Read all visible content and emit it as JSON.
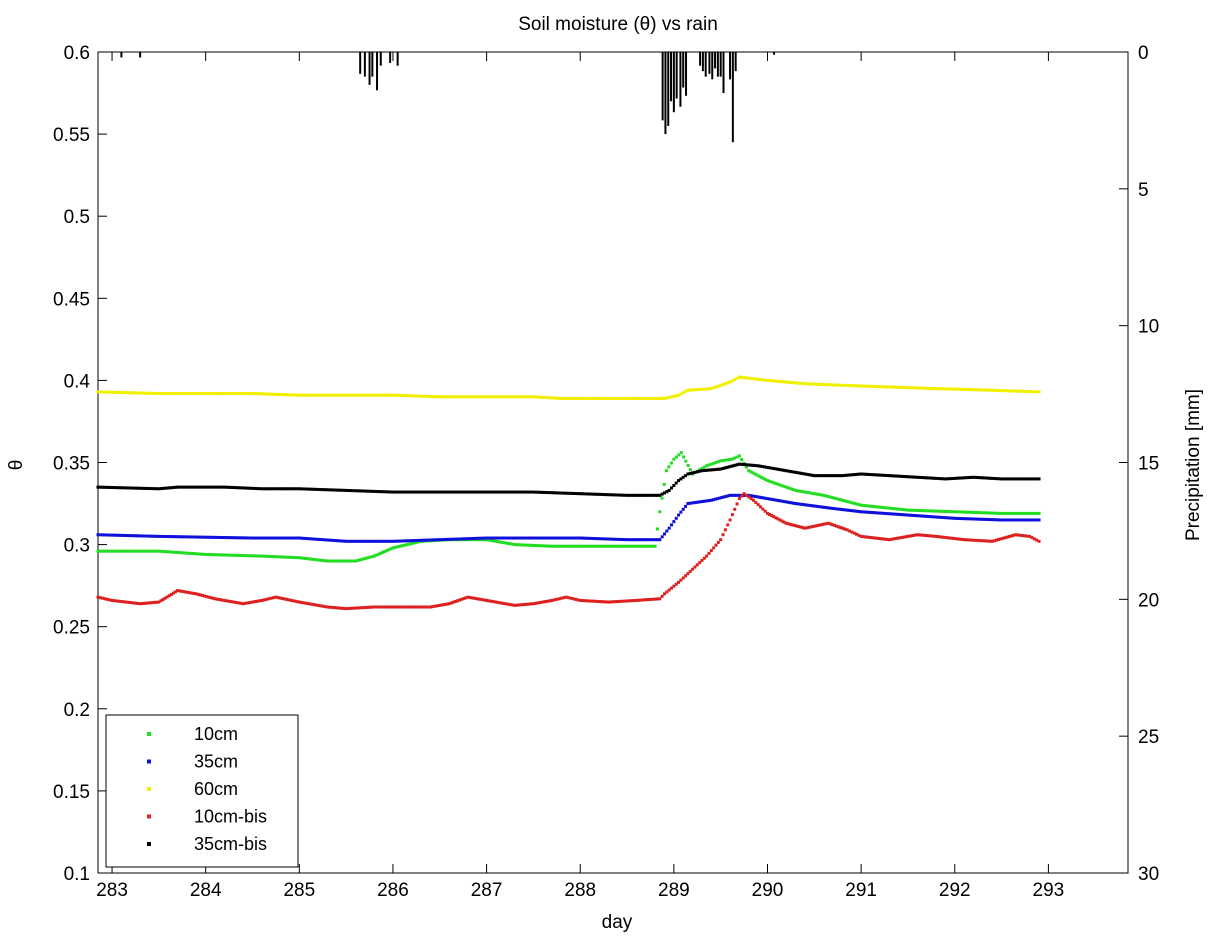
{
  "chart_data": {
    "type": "scatter",
    "title": "Soil moisture (θ) vs rain",
    "xlabel": "day",
    "ylabel": "θ",
    "y2label": "Precipitation [mm]",
    "xlim": [
      282.85,
      293.85
    ],
    "ylim": [
      0.1,
      0.6
    ],
    "y2lim": [
      0,
      30
    ],
    "y2_reversed": true,
    "xticks": [
      283,
      284,
      285,
      286,
      287,
      288,
      289,
      290,
      291,
      292,
      293
    ],
    "yticks": [
      0.1,
      0.15,
      0.2,
      0.25,
      0.3,
      0.35,
      0.4,
      0.45,
      0.5,
      0.55,
      0.6
    ],
    "y2ticks": [
      0,
      5,
      10,
      15,
      20,
      25,
      30
    ],
    "grid": false,
    "legend_position": "bottom-left",
    "series": [
      {
        "name": "10cm",
        "color": "#22dd22",
        "points": [
          [
            282.85,
            0.296
          ],
          [
            283.5,
            0.296
          ],
          [
            284.0,
            0.294
          ],
          [
            284.6,
            0.293
          ],
          [
            285.0,
            0.292
          ],
          [
            285.3,
            0.29
          ],
          [
            285.6,
            0.29
          ],
          [
            285.8,
            0.293
          ],
          [
            286.0,
            0.298
          ],
          [
            286.3,
            0.302
          ],
          [
            286.6,
            0.303
          ],
          [
            287.0,
            0.303
          ],
          [
            287.3,
            0.3
          ],
          [
            287.7,
            0.299
          ],
          [
            288.0,
            0.299
          ],
          [
            288.4,
            0.299
          ],
          [
            288.8,
            0.299
          ],
          [
            288.85,
            0.32
          ],
          [
            288.92,
            0.345
          ],
          [
            289.0,
            0.352
          ],
          [
            289.08,
            0.356
          ],
          [
            289.2,
            0.343
          ],
          [
            289.35,
            0.348
          ],
          [
            289.5,
            0.351
          ],
          [
            289.62,
            0.352
          ],
          [
            289.7,
            0.354
          ],
          [
            289.8,
            0.345
          ],
          [
            290.0,
            0.339
          ],
          [
            290.3,
            0.333
          ],
          [
            290.6,
            0.33
          ],
          [
            291.0,
            0.324
          ],
          [
            291.5,
            0.321
          ],
          [
            292.0,
            0.32
          ],
          [
            292.5,
            0.319
          ],
          [
            292.9,
            0.319
          ]
        ]
      },
      {
        "name": "35cm",
        "color": "#1010dd",
        "points": [
          [
            282.85,
            0.306
          ],
          [
            283.5,
            0.305
          ],
          [
            284.5,
            0.304
          ],
          [
            285.0,
            0.304
          ],
          [
            285.5,
            0.302
          ],
          [
            286.0,
            0.302
          ],
          [
            286.5,
            0.303
          ],
          [
            287.0,
            0.304
          ],
          [
            287.5,
            0.304
          ],
          [
            288.0,
            0.304
          ],
          [
            288.5,
            0.303
          ],
          [
            288.85,
            0.303
          ],
          [
            288.95,
            0.31
          ],
          [
            289.05,
            0.318
          ],
          [
            289.15,
            0.325
          ],
          [
            289.4,
            0.327
          ],
          [
            289.6,
            0.33
          ],
          [
            289.8,
            0.33
          ],
          [
            290.0,
            0.328
          ],
          [
            290.3,
            0.325
          ],
          [
            290.7,
            0.322
          ],
          [
            291.0,
            0.32
          ],
          [
            291.5,
            0.318
          ],
          [
            292.0,
            0.316
          ],
          [
            292.5,
            0.315
          ],
          [
            292.9,
            0.315
          ]
        ]
      },
      {
        "name": "60cm",
        "color": "#f0f000",
        "points": [
          [
            282.85,
            0.393
          ],
          [
            283.5,
            0.392
          ],
          [
            284.5,
            0.392
          ],
          [
            285.0,
            0.391
          ],
          [
            285.5,
            0.391
          ],
          [
            286.0,
            0.391
          ],
          [
            286.5,
            0.39
          ],
          [
            287.0,
            0.39
          ],
          [
            287.5,
            0.39
          ],
          [
            287.8,
            0.389
          ],
          [
            288.0,
            0.389
          ],
          [
            288.5,
            0.389
          ],
          [
            288.9,
            0.389
          ],
          [
            289.05,
            0.391
          ],
          [
            289.15,
            0.394
          ],
          [
            289.4,
            0.395
          ],
          [
            289.6,
            0.399
          ],
          [
            289.7,
            0.402
          ],
          [
            290.0,
            0.4
          ],
          [
            290.4,
            0.398
          ],
          [
            290.8,
            0.397
          ],
          [
            291.3,
            0.396
          ],
          [
            291.8,
            0.395
          ],
          [
            292.4,
            0.394
          ],
          [
            292.9,
            0.393
          ]
        ]
      },
      {
        "name": "10cm-bis",
        "color": "#dd2020",
        "points": [
          [
            282.85,
            0.268
          ],
          [
            283.0,
            0.266
          ],
          [
            283.3,
            0.264
          ],
          [
            283.5,
            0.265
          ],
          [
            283.7,
            0.272
          ],
          [
            283.9,
            0.27
          ],
          [
            284.1,
            0.267
          ],
          [
            284.4,
            0.264
          ],
          [
            284.6,
            0.266
          ],
          [
            284.75,
            0.268
          ],
          [
            285.0,
            0.265
          ],
          [
            285.3,
            0.262
          ],
          [
            285.5,
            0.261
          ],
          [
            285.8,
            0.262
          ],
          [
            286.0,
            0.262
          ],
          [
            286.4,
            0.262
          ],
          [
            286.6,
            0.264
          ],
          [
            286.8,
            0.268
          ],
          [
            287.0,
            0.266
          ],
          [
            287.3,
            0.263
          ],
          [
            287.5,
            0.264
          ],
          [
            287.7,
            0.266
          ],
          [
            287.85,
            0.268
          ],
          [
            288.0,
            0.266
          ],
          [
            288.3,
            0.265
          ],
          [
            288.6,
            0.266
          ],
          [
            288.85,
            0.267
          ],
          [
            288.9,
            0.27
          ],
          [
            289.05,
            0.277
          ],
          [
            289.2,
            0.285
          ],
          [
            289.35,
            0.293
          ],
          [
            289.5,
            0.303
          ],
          [
            289.6,
            0.315
          ],
          [
            289.7,
            0.328
          ],
          [
            289.75,
            0.331
          ],
          [
            289.85,
            0.327
          ],
          [
            290.0,
            0.319
          ],
          [
            290.2,
            0.313
          ],
          [
            290.4,
            0.31
          ],
          [
            290.65,
            0.313
          ],
          [
            290.85,
            0.309
          ],
          [
            291.0,
            0.305
          ],
          [
            291.3,
            0.303
          ],
          [
            291.6,
            0.306
          ],
          [
            291.8,
            0.305
          ],
          [
            292.1,
            0.303
          ],
          [
            292.4,
            0.302
          ],
          [
            292.65,
            0.306
          ],
          [
            292.8,
            0.305
          ],
          [
            292.9,
            0.302
          ]
        ]
      },
      {
        "name": "35cm-bis",
        "color": "#000000",
        "points": [
          [
            282.85,
            0.335
          ],
          [
            283.5,
            0.334
          ],
          [
            283.7,
            0.335
          ],
          [
            284.2,
            0.335
          ],
          [
            284.6,
            0.334
          ],
          [
            285.0,
            0.334
          ],
          [
            285.5,
            0.333
          ],
          [
            286.0,
            0.332
          ],
          [
            286.5,
            0.332
          ],
          [
            287.0,
            0.332
          ],
          [
            287.5,
            0.332
          ],
          [
            288.0,
            0.331
          ],
          [
            288.5,
            0.33
          ],
          [
            288.85,
            0.33
          ],
          [
            288.95,
            0.333
          ],
          [
            289.05,
            0.339
          ],
          [
            289.15,
            0.343
          ],
          [
            289.3,
            0.345
          ],
          [
            289.5,
            0.346
          ],
          [
            289.7,
            0.349
          ],
          [
            289.9,
            0.348
          ],
          [
            290.2,
            0.345
          ],
          [
            290.5,
            0.342
          ],
          [
            290.8,
            0.342
          ],
          [
            291.0,
            0.343
          ],
          [
            291.3,
            0.342
          ],
          [
            291.6,
            0.341
          ],
          [
            291.9,
            0.34
          ],
          [
            292.2,
            0.341
          ],
          [
            292.5,
            0.34
          ],
          [
            292.9,
            0.34
          ]
        ]
      }
    ],
    "precipitation": {
      "name": "rain",
      "color": "#000000",
      "bars": [
        [
          283.1,
          0.2
        ],
        [
          283.3,
          0.2
        ],
        [
          285.65,
          0.8
        ],
        [
          285.7,
          0.9
        ],
        [
          285.75,
          1.2
        ],
        [
          285.78,
          0.9
        ],
        [
          285.83,
          1.4
        ],
        [
          285.87,
          0.5
        ],
        [
          285.97,
          0.4
        ],
        [
          286.05,
          0.5
        ],
        [
          288.88,
          2.5
        ],
        [
          288.91,
          3.0
        ],
        [
          288.94,
          2.7
        ],
        [
          288.97,
          1.8
        ],
        [
          289.0,
          2.2
        ],
        [
          289.03,
          1.7
        ],
        [
          289.07,
          2.0
        ],
        [
          289.1,
          1.3
        ],
        [
          289.13,
          1.6
        ],
        [
          289.28,
          0.5
        ],
        [
          289.31,
          0.7
        ],
        [
          289.34,
          0.9
        ],
        [
          289.38,
          0.8
        ],
        [
          289.41,
          1.0
        ],
        [
          289.44,
          0.6
        ],
        [
          289.47,
          0.9
        ],
        [
          289.5,
          0.9
        ],
        [
          289.53,
          1.5
        ],
        [
          289.6,
          1.0
        ],
        [
          289.63,
          3.3
        ],
        [
          289.66,
          0.7
        ],
        [
          290.07,
          0.1
        ]
      ]
    }
  }
}
